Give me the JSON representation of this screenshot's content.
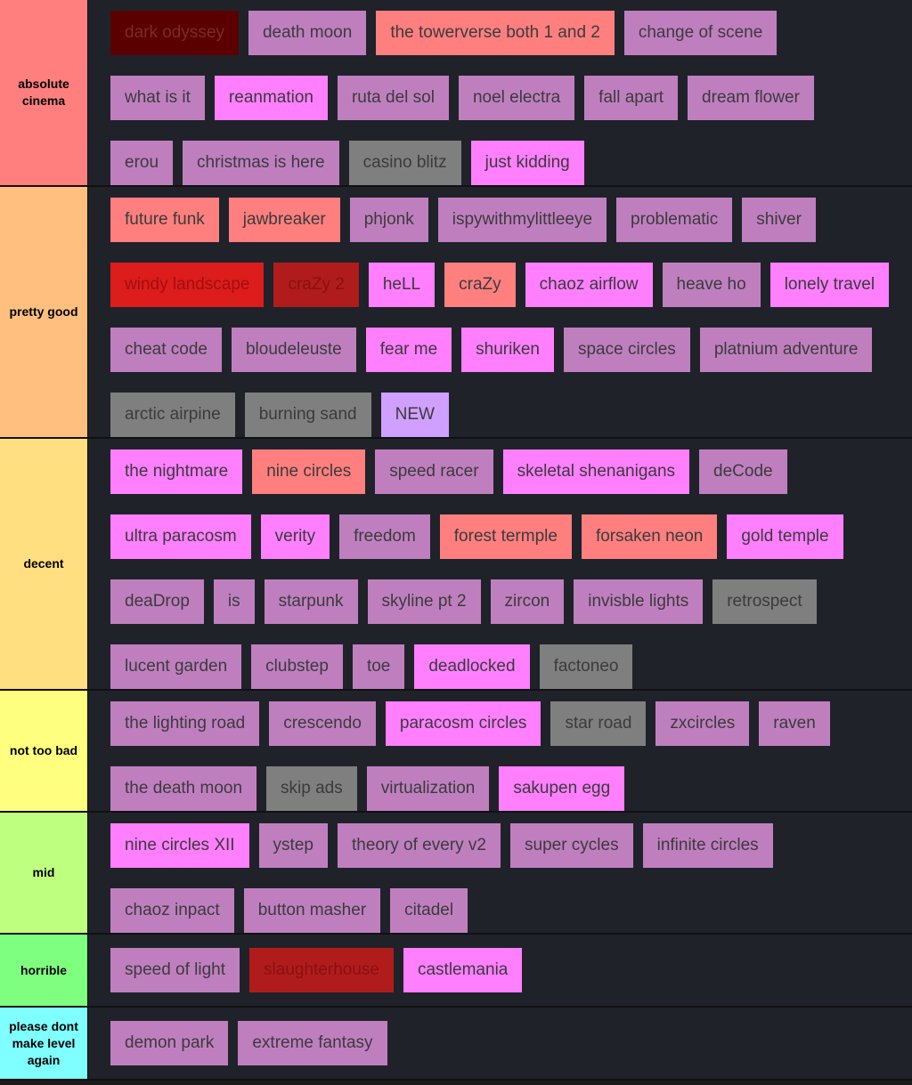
{
  "tiers": [
    {
      "label": "absolute cinema",
      "color": "#ff7f7f",
      "lines": [
        [
          {
            "text": "dark odyssey",
            "color": "#5a0000",
            "text_color": "#7a2a2a"
          },
          {
            "text": "death moon",
            "color": "#bf7fbf"
          },
          {
            "text": "the towerverse both 1 and 2",
            "color": "#ff7f7f"
          },
          {
            "text": "change of scene",
            "color": "#bf7fbf"
          }
        ],
        [
          {
            "text": "what is it",
            "color": "#bf7fbf"
          },
          {
            "text": "reanmation",
            "color": "#ff7fff"
          },
          {
            "text": "ruta del sol",
            "color": "#bf7fbf"
          },
          {
            "text": "noel electra",
            "color": "#bf7fbf"
          },
          {
            "text": "fall apart",
            "color": "#bf7fbf"
          },
          {
            "text": "dream flower",
            "color": "#bf7fbf"
          }
        ],
        [
          {
            "text": "erou",
            "color": "#bf7fbf"
          },
          {
            "text": "christmas is here",
            "color": "#bf7fbf"
          },
          {
            "text": "casino blitz",
            "color": "#7f7f7f"
          },
          {
            "text": "just kidding",
            "color": "#ff7fff"
          }
        ]
      ]
    },
    {
      "label": "pretty good",
      "color": "#ffbf7f",
      "lines": [
        [
          {
            "text": "future funk",
            "color": "#ff7f7f"
          },
          {
            "text": "jawbreaker",
            "color": "#ff7f7f"
          },
          {
            "text": "phjonk",
            "color": "#bf7fbf"
          },
          {
            "text": "ispywithmylittleeye",
            "color": "#bf7fbf"
          },
          {
            "text": "problematic",
            "color": "#bf7fbf"
          },
          {
            "text": "shiver",
            "color": "#bf7fbf"
          }
        ],
        [
          {
            "text": "windy landscape",
            "color": "#dd1c1c",
            "text_color": "#a01010"
          },
          {
            "text": "craZy 2",
            "color": "#b01c1c",
            "text_color": "#8a1010"
          },
          {
            "text": "heLL",
            "color": "#ff7fff"
          },
          {
            "text": "craZy",
            "color": "#ff7f7f"
          },
          {
            "text": "chaoz airflow",
            "color": "#ff7fff"
          },
          {
            "text": "heave ho",
            "color": "#bf7fbf"
          },
          {
            "text": "lonely travel",
            "color": "#ff7fff"
          }
        ],
        [
          {
            "text": "cheat code",
            "color": "#bf7fbf"
          },
          {
            "text": "bloudeleuste",
            "color": "#bf7fbf"
          },
          {
            "text": "fear me",
            "color": "#ff7fff"
          },
          {
            "text": "shuriken",
            "color": "#ff7fff"
          },
          {
            "text": "space circles",
            "color": "#bf7fbf"
          },
          {
            "text": "platnium adventure",
            "color": "#bf7fbf"
          }
        ],
        [
          {
            "text": "arctic airpine",
            "color": "#7f7f7f"
          },
          {
            "text": "burning sand",
            "color": "#7f7f7f"
          },
          {
            "text": "NEW",
            "color": "#cfa0ff"
          }
        ]
      ]
    },
    {
      "label": "decent",
      "color": "#ffdf7f",
      "lines": [
        [
          {
            "text": "the nightmare",
            "color": "#ff7fff"
          },
          {
            "text": "nine circles",
            "color": "#ff7f7f"
          },
          {
            "text": "speed racer",
            "color": "#bf7fbf"
          },
          {
            "text": "skeletal shenanigans",
            "color": "#ff7fff"
          },
          {
            "text": "deCode",
            "color": "#bf7fbf"
          }
        ],
        [
          {
            "text": "ultra paracosm",
            "color": "#ff7fff"
          },
          {
            "text": "verity",
            "color": "#ff7fff"
          },
          {
            "text": "freedom",
            "color": "#bf7fbf"
          },
          {
            "text": "forest termple",
            "color": "#ff7f7f"
          },
          {
            "text": "forsaken neon",
            "color": "#ff7f7f"
          },
          {
            "text": "gold temple",
            "color": "#ff7fff"
          }
        ],
        [
          {
            "text": "deaDrop",
            "color": "#bf7fbf"
          },
          {
            "text": "is",
            "color": "#bf7fbf"
          },
          {
            "text": "starpunk",
            "color": "#bf7fbf"
          },
          {
            "text": "skyline pt 2",
            "color": "#bf7fbf"
          },
          {
            "text": "zircon",
            "color": "#bf7fbf"
          },
          {
            "text": "invisble lights",
            "color": "#bf7fbf"
          },
          {
            "text": "retrospect",
            "color": "#7f7f7f"
          }
        ],
        [
          {
            "text": "lucent garden",
            "color": "#bf7fbf"
          },
          {
            "text": "clubstep",
            "color": "#bf7fbf"
          },
          {
            "text": "toe",
            "color": "#bf7fbf"
          },
          {
            "text": "deadlocked",
            "color": "#ff7fff"
          },
          {
            "text": "factoneo",
            "color": "#7f7f7f"
          }
        ]
      ]
    },
    {
      "label": "not too bad",
      "color": "#ffff7f",
      "lines": [
        [
          {
            "text": "the lighting road",
            "color": "#bf7fbf"
          },
          {
            "text": "crescendo",
            "color": "#bf7fbf"
          },
          {
            "text": "paracosm circles",
            "color": "#ff7fff"
          },
          {
            "text": "star road",
            "color": "#7f7f7f"
          },
          {
            "text": "zxcircles",
            "color": "#bf7fbf"
          },
          {
            "text": "raven",
            "color": "#bf7fbf"
          }
        ],
        [
          {
            "text": "the death moon",
            "color": "#bf7fbf"
          },
          {
            "text": "skip ads",
            "color": "#7f7f7f"
          },
          {
            "text": "virtualization",
            "color": "#bf7fbf"
          },
          {
            "text": "sakupen egg",
            "color": "#ff7fff"
          }
        ]
      ]
    },
    {
      "label": "mid",
      "color": "#bfff7f",
      "lines": [
        [
          {
            "text": "nine circles XII",
            "color": "#ff7fff"
          },
          {
            "text": "ystep",
            "color": "#bf7fbf"
          },
          {
            "text": "theory of every v2",
            "color": "#bf7fbf"
          },
          {
            "text": "super cycles",
            "color": "#bf7fbf"
          },
          {
            "text": "infinite circles",
            "color": "#bf7fbf"
          }
        ],
        [
          {
            "text": "chaoz inpact",
            "color": "#bf7fbf"
          },
          {
            "text": "button masher",
            "color": "#bf7fbf"
          },
          {
            "text": "citadel",
            "color": "#bf7fbf"
          }
        ]
      ]
    },
    {
      "label": "horrible",
      "color": "#7fff7f",
      "lines": [
        [
          {
            "text": "speed of light",
            "color": "#bf7fbf"
          },
          {
            "text": "slaughterhouse",
            "color": "#b01c1c",
            "text_color": "#8a1010"
          },
          {
            "text": "castlemania",
            "color": "#ff7fff"
          }
        ]
      ]
    },
    {
      "label": "please dont make level again",
      "color": "#7fffff",
      "lines": [
        [
          {
            "text": "demon park",
            "color": "#bf7fbf"
          },
          {
            "text": "extreme fantasy",
            "color": "#bf7fbf"
          }
        ]
      ]
    }
  ]
}
